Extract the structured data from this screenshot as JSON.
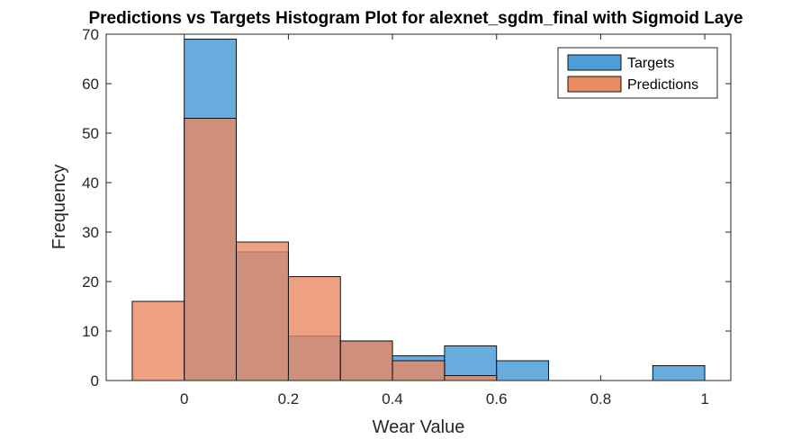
{
  "chart_data": {
    "type": "bar",
    "title": "Predictions vs Targets Histogram Plot for alexnet_sgdm_final with Sigmoid Laye",
    "xlabel": "Wear Value",
    "ylabel": "Frequency",
    "xlim": [
      -0.15,
      1.05
    ],
    "ylim": [
      0,
      70
    ],
    "xticks": [
      "0",
      "0.2",
      "0.4",
      "0.6",
      "0.8",
      "1"
    ],
    "xtick_values": [
      0,
      0.2,
      0.4,
      0.6,
      0.8,
      1
    ],
    "yticks": [
      "0",
      "10",
      "20",
      "30",
      "40",
      "50",
      "60",
      "70"
    ],
    "ytick_values": [
      0,
      10,
      20,
      30,
      40,
      50,
      60,
      70
    ],
    "grid": false,
    "legend_position": "top-right",
    "series": [
      {
        "name": "Targets",
        "color": "#4c9ed6",
        "bin_edges": [
          -0.1,
          0,
          0.1,
          0.2,
          0.3,
          0.4,
          0.5,
          0.6,
          0.7,
          0.8,
          0.9,
          1.0
        ],
        "counts": [
          0,
          69,
          26,
          9,
          8,
          5,
          7,
          4,
          0,
          0,
          3
        ]
      },
      {
        "name": "Predictions",
        "color": "#e98a63",
        "bin_edges": [
          -0.1,
          0,
          0.1,
          0.2,
          0.3,
          0.4,
          0.5,
          0.6,
          0.7,
          0.8,
          0.9,
          1.0
        ],
        "counts": [
          16,
          53,
          28,
          21,
          8,
          4,
          1,
          0,
          0,
          0,
          0
        ]
      }
    ]
  }
}
